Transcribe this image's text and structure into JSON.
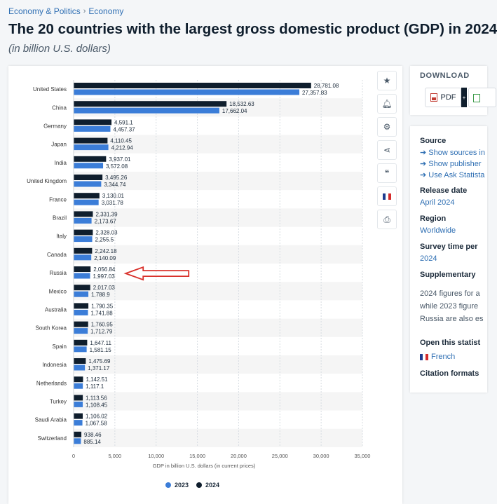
{
  "breadcrumb": {
    "items": [
      "Economy & Politics",
      "Economy"
    ],
    "separator": "›"
  },
  "page": {
    "title": "The 20 countries with the largest gross domestic product (GDP) in 2024",
    "subtitle": "(in billion U.S. dollars)"
  },
  "toolbar": {
    "icons": [
      "star-icon",
      "bell-icon",
      "gear-icon",
      "share-icon",
      "quote-icon",
      "flag-icon",
      "print-icon"
    ]
  },
  "download": {
    "title": "DOWNLOAD",
    "pdf_label": "PDF",
    "plus": "+"
  },
  "info": {
    "source_label": "Source",
    "source_links": [
      "➔ Show sources in",
      "➔ Show publisher",
      "➔ Use Ask Statista"
    ],
    "release_label": "Release date",
    "release_value": "April 2024",
    "region_label": "Region",
    "region_value": "Worldwide",
    "survey_label": "Survey time per",
    "survey_value": "2024",
    "supp_label": "Supplementary",
    "supp_lines": [
      "2024 figures for a",
      "while 2023 figure",
      "Russia are also es"
    ],
    "open_label": "Open this statist",
    "open_value": "French",
    "citation_label": "Citation formats"
  },
  "colors": {
    "series_2023": "#3b7dd8",
    "series_2024": "#0f1e2d",
    "arrow": "#d9302a",
    "stripe": "#f5f5f5"
  },
  "chart_data": {
    "type": "bar",
    "orientation": "horizontal",
    "categories": [
      "United States",
      "China",
      "Germany",
      "Japan",
      "India",
      "United Kingdom",
      "France",
      "Brazil",
      "Italy",
      "Canada",
      "Russia",
      "Mexico",
      "Australia",
      "South Korea",
      "Spain",
      "Indonesia",
      "Netherlands",
      "Turkey",
      "Saudi Arabia",
      "Switzerland"
    ],
    "series": [
      {
        "name": "2024",
        "values": [
          28781.08,
          18532.63,
          4591.1,
          4110.45,
          3937.01,
          3495.26,
          3130.01,
          2331.39,
          2328.03,
          2242.18,
          2056.84,
          2017.03,
          1790.35,
          1760.95,
          1647.11,
          1475.69,
          1142.51,
          1113.56,
          1106.02,
          938.46
        ],
        "labels": [
          "28,781.08",
          "18,532.63",
          "4,591.1",
          "4,110.45",
          "3,937.01",
          "3,495.26",
          "3,130.01",
          "2,331.39",
          "2,328.03",
          "2,242.18",
          "2,056.84",
          "2,017.03",
          "1,790.35",
          "1,760.95",
          "1,647.11",
          "1,475.69",
          "1,142.51",
          "1,113.56",
          "1,106.02",
          "938.46"
        ]
      },
      {
        "name": "2023",
        "values": [
          27357.83,
          17662.04,
          4457.37,
          4212.94,
          3572.08,
          3344.74,
          3031.78,
          2173.67,
          2255.5,
          2140.09,
          1997.03,
          1788.9,
          1741.88,
          1712.79,
          1581.15,
          1371.17,
          1117.1,
          1108.45,
          1067.58,
          885.14
        ],
        "labels": [
          "27,357.83",
          "17,662.04",
          "4,457.37",
          "4,212.94",
          "3,572.08",
          "3,344.74",
          "3,031.78",
          "2,173.67",
          "2,255.5",
          "2,140.09",
          "1,997.03",
          "1,788.9",
          "1,741.88",
          "1,712.79",
          "1,581.15",
          "1,371.17",
          "1,117.1",
          "1,108.45",
          "1,067.58",
          "885.14"
        ]
      }
    ],
    "xlabel": "GDP in billion U.S. dollars (in current prices)",
    "xlim": [
      0,
      35000
    ],
    "xticks": [
      0,
      5000,
      10000,
      15000,
      20000,
      25000,
      30000,
      35000
    ],
    "xtick_labels": [
      "0",
      "5,000",
      "10,000",
      "15,000",
      "20,000",
      "25,000",
      "30,000",
      "35,000"
    ],
    "legend": [
      "2023",
      "2024"
    ],
    "legend_position": "bottom",
    "grid": true,
    "annotation": {
      "type": "arrow",
      "points_to": "Russia"
    }
  }
}
